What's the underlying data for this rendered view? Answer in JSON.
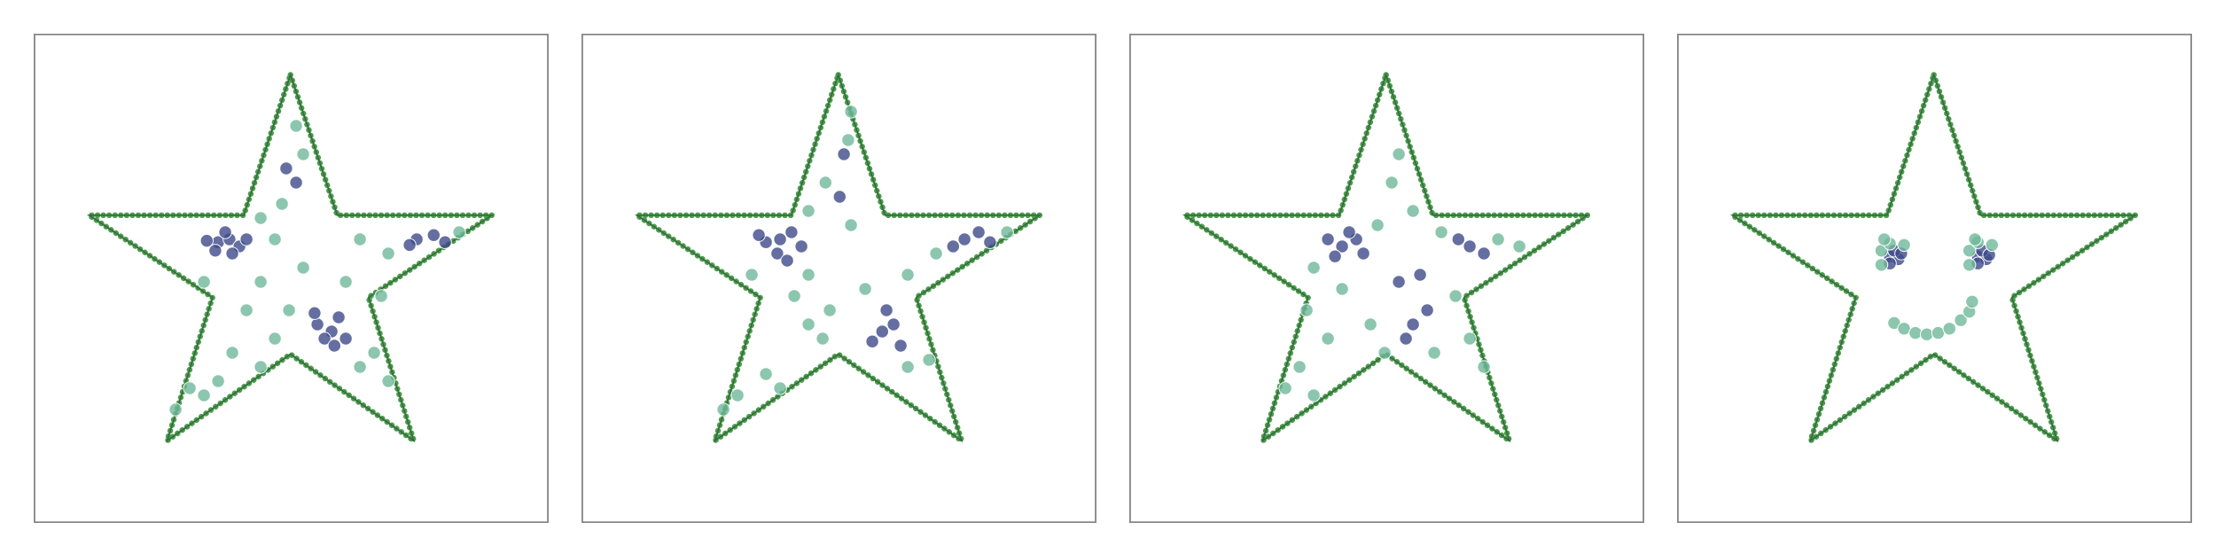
{
  "chart_data": [
    {
      "type": "scatter",
      "xlim": [
        0,
        363
      ],
      "ylim": [
        0,
        345
      ],
      "series": [
        {
          "color": "#3e4a89",
          "x": [
            130,
            138,
            145,
            128,
            140,
            150,
            135,
            122,
            200,
            210,
            215,
            205,
            220,
            198,
            212,
            270,
            282,
            290,
            265,
            185,
            178
          ],
          "y": [
            198,
            200,
            195,
            192,
            190,
            200,
            205,
            199,
            140,
            135,
            145,
            130,
            130,
            148,
            125,
            200,
            203,
            198,
            196,
            240,
            250
          ]
        },
        {
          "color": "#6fb89a",
          "x": [
            160,
            175,
            190,
            185,
            170,
            160,
            150,
            120,
            140,
            160,
            230,
            240,
            250,
            110,
            120,
            100,
            130,
            230,
            250,
            300,
            190,
            220,
            245,
            180,
            170
          ],
          "y": [
            215,
            225,
            260,
            280,
            200,
            170,
            150,
            170,
            120,
            110,
            110,
            120,
            100,
            95,
            90,
            80,
            100,
            200,
            190,
            205,
            180,
            170,
            160,
            150,
            130
          ]
        }
      ]
    },
    {
      "type": "scatter",
      "xlim": [
        0,
        363
      ],
      "ylim": [
        0,
        345
      ],
      "series": [
        {
          "color": "#3e4a89",
          "x": [
            140,
            148,
            130,
            155,
            138,
            125,
            145,
            212,
            220,
            205,
            225,
            215,
            270,
            280,
            262,
            288,
            185,
            182
          ],
          "y": [
            200,
            205,
            198,
            195,
            190,
            203,
            185,
            135,
            140,
            128,
            125,
            150,
            200,
            205,
            195,
            198,
            260,
            230
          ]
        },
        {
          "color": "#6fb89a",
          "x": [
            160,
            172,
            190,
            188,
            160,
            150,
            120,
            110,
            100,
            130,
            140,
            230,
            245,
            200,
            230,
            250,
            300,
            175,
            170,
            190,
            160
          ],
          "y": [
            220,
            240,
            290,
            270,
            175,
            160,
            175,
            90,
            80,
            105,
            95,
            110,
            115,
            165,
            175,
            190,
            205,
            150,
            130,
            210,
            140
          ]
        }
      ]
    },
    {
      "type": "scatter",
      "xlim": [
        0,
        363
      ],
      "ylim": [
        0,
        345
      ],
      "series": [
        {
          "color": "#3e4a89",
          "x": [
            150,
            160,
            145,
            165,
            155,
            140,
            200,
            210,
            195,
            240,
            250,
            232,
            190,
            205
          ],
          "y": [
            195,
            200,
            188,
            190,
            205,
            200,
            140,
            150,
            130,
            195,
            190,
            200,
            170,
            175
          ]
        },
        {
          "color": "#6fb89a",
          "x": [
            130,
            125,
            140,
            120,
            110,
            130,
            175,
            185,
            190,
            220,
            260,
            275,
            230,
            215,
            240,
            250,
            170,
            180,
            200,
            150
          ],
          "y": [
            180,
            150,
            130,
            110,
            95,
            90,
            210,
            240,
            260,
            205,
            200,
            195,
            160,
            120,
            130,
            110,
            140,
            120,
            220,
            165
          ]
        }
      ]
    },
    {
      "type": "scatter",
      "xlim": [
        0,
        363
      ],
      "ylim": [
        0,
        345
      ],
      "series": [
        {
          "color": "#3e4a89",
          "x": [
            150,
            156,
            153,
            158,
            150,
            212,
            218,
            215,
            220,
            212
          ],
          "y": [
            188,
            186,
            192,
            190,
            183,
            188,
            186,
            192,
            189,
            183
          ]
        },
        {
          "color": "#6fb89a",
          "x": [
            144,
            144,
            150,
            160,
            146,
            206,
            206,
            212,
            222,
            210,
            153,
            160,
            168,
            176,
            184,
            192,
            200,
            206,
            208
          ],
          "y": [
            182,
            192,
            197,
            196,
            200,
            182,
            192,
            198,
            196,
            200,
            141,
            137,
            134,
            133,
            134,
            137,
            143,
            149,
            156
          ]
        }
      ]
    }
  ]
}
